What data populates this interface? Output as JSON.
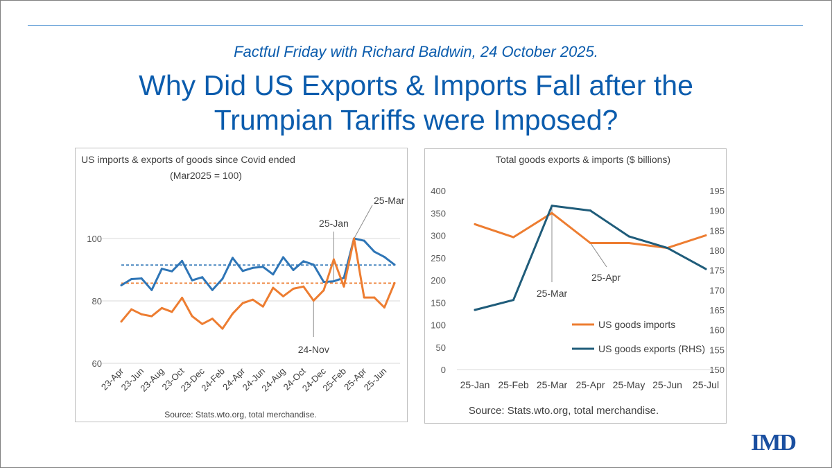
{
  "header": {
    "subtitle": "Factful Friday with Richard Baldwin, 24 October 2025.",
    "title_line1": "Why Did US Exports & Imports Fall after the",
    "title_line2": "Trumpian Tariffs were Imposed?"
  },
  "logo": {
    "text": "IMD"
  },
  "colors": {
    "imports": "#ed7d31",
    "exports_left": "#2e75b6",
    "exports_right": "#1f5c7a",
    "title": "#0b5cad"
  },
  "chart_data": [
    {
      "type": "line",
      "title": "US imports & exports of goods since Covid ended",
      "subtitle": "(Mar2025 = 100)",
      "ylim": [
        60,
        104
      ],
      "yticks": [
        60,
        80,
        100
      ],
      "xtick_labels": [
        "23-Apr",
        "23-Jun",
        "23-Aug",
        "23-Oct",
        "23-Dec",
        "24-Feb",
        "24-Apr",
        "24-Jun",
        "24-Aug",
        "24-Oct",
        "24-Dec",
        "25-Feb",
        "25-Apr",
        "25-Jun"
      ],
      "x": [
        "23-Apr",
        "23-May",
        "23-Jun",
        "23-Jul",
        "23-Aug",
        "23-Sep",
        "23-Oct",
        "23-Nov",
        "23-Dec",
        "24-Jan",
        "24-Feb",
        "24-Mar",
        "24-Apr",
        "24-May",
        "24-Jun",
        "24-Jul",
        "24-Aug",
        "24-Sep",
        "24-Oct",
        "24-Nov",
        "24-Dec",
        "25-Jan",
        "25-Feb",
        "25-Mar",
        "25-Apr",
        "25-May",
        "25-Jun",
        "25-Jul"
      ],
      "series": [
        {
          "name": "US goods exports",
          "values": [
            85.0,
            87.0,
            87.2,
            83.5,
            90.3,
            89.5,
            92.8,
            86.6,
            87.6,
            83.5,
            87.1,
            93.8,
            89.6,
            90.6,
            90.9,
            88.5,
            94.0,
            89.9,
            92.7,
            91.6,
            86.1,
            86.3,
            87.4,
            100.0,
            99.3,
            95.8,
            94.1,
            91.6
          ]
        },
        {
          "name": "US goods imports",
          "values": [
            73.4,
            77.3,
            75.7,
            75.1,
            77.7,
            76.5,
            81.0,
            75.1,
            72.6,
            74.3,
            71.1,
            75.9,
            79.3,
            80.4,
            78.2,
            84.2,
            81.5,
            83.9,
            84.6,
            80.1,
            83.4,
            93.3,
            84.6,
            100.0,
            81.1,
            81.1,
            77.9,
            85.7
          ]
        }
      ],
      "reference_lines": [
        {
          "series": "US goods exports",
          "value": 91.5
        },
        {
          "series": "US goods imports",
          "value": 85.7
        }
      ],
      "annotations": [
        "25-Mar",
        "25-Jan",
        "24-Nov"
      ],
      "source": "Source: Stats.wto.org, total merchandise."
    },
    {
      "type": "line",
      "title": "Total goods exports & imports ($ billions)",
      "categories": [
        "25-Jan",
        "25-Feb",
        "25-Mar",
        "25-Apr",
        "25-May",
        "25-Jun",
        "25-Jul"
      ],
      "y_left": {
        "ylim": [
          0,
          400
        ],
        "ticks": [
          0,
          50,
          100,
          150,
          200,
          250,
          300,
          350,
          400
        ]
      },
      "y_right": {
        "ylim": [
          150,
          195
        ],
        "ticks": [
          150,
          155,
          160,
          165,
          170,
          175,
          180,
          185,
          190,
          195
        ]
      },
      "series": [
        {
          "name": "US goods imports",
          "axis": "left",
          "values": [
            325,
            296,
            350,
            283,
            283,
            272,
            300
          ]
        },
        {
          "name": "US goods exports (RHS)",
          "axis": "right",
          "values": [
            165,
            167.5,
            191.2,
            190,
            183.5,
            180.6,
            175.3
          ]
        }
      ],
      "annotations": [
        "25-Mar",
        "25-Apr"
      ],
      "legend": "center-right",
      "source": "Source: Stats.wto.org, total merchandise."
    }
  ]
}
